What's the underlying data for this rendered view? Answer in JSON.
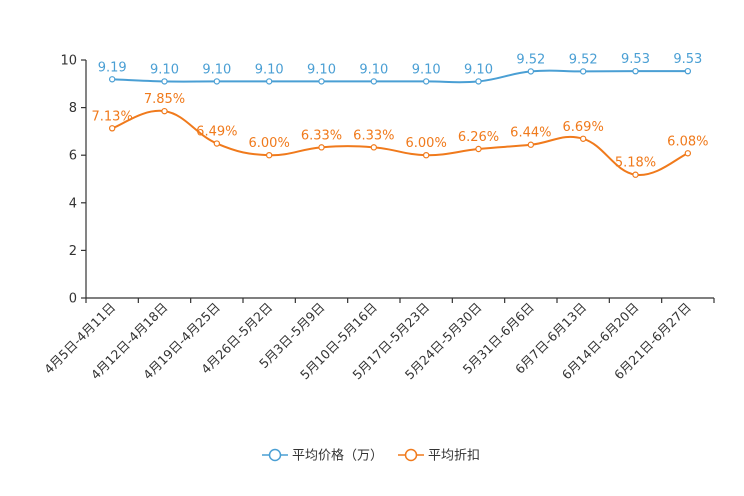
{
  "chart_data": {
    "type": "line",
    "title": "",
    "xlabel": "",
    "ylabel": "",
    "ylim": [
      0,
      10
    ],
    "yticks": [
      "0",
      "2",
      "4",
      "6",
      "8",
      "10"
    ],
    "grid": false,
    "legend_position": "bottom-center",
    "categories": [
      "4月5日-4月11日",
      "4月12日-4月18日",
      "4月19日-4月25日",
      "4月26日-5月2日",
      "5月3日-5月9日",
      "5月10日-5月16日",
      "5月17日-5月23日",
      "5月24日-5月30日",
      "5月31日-6月6日",
      "6月7日-6月13日",
      "6月14日-6月20日",
      "6月21日-6月27日"
    ],
    "series": [
      {
        "name": "平均价格（万）",
        "color": "#4a9fd4",
        "values": [
          9.19,
          9.1,
          9.1,
          9.1,
          9.1,
          9.1,
          9.1,
          9.1,
          9.52,
          9.52,
          9.53,
          9.53
        ],
        "labels": [
          "9.19",
          "9.10",
          "9.10",
          "9.10",
          "9.10",
          "9.10",
          "9.10",
          "9.10",
          "9.52",
          "9.52",
          "9.53",
          "9.53"
        ]
      },
      {
        "name": "平均折扣",
        "color": "#f07a1c",
        "values": [
          7.13,
          7.85,
          6.49,
          6.0,
          6.33,
          6.33,
          6.0,
          6.26,
          6.44,
          6.69,
          5.18,
          6.08
        ],
        "labels": [
          "7.13%",
          "7.85%",
          "6.49%",
          "6.00%",
          "6.33%",
          "6.33%",
          "6.00%",
          "6.26%",
          "6.44%",
          "6.69%",
          "5.18%",
          "6.08%"
        ]
      }
    ]
  }
}
